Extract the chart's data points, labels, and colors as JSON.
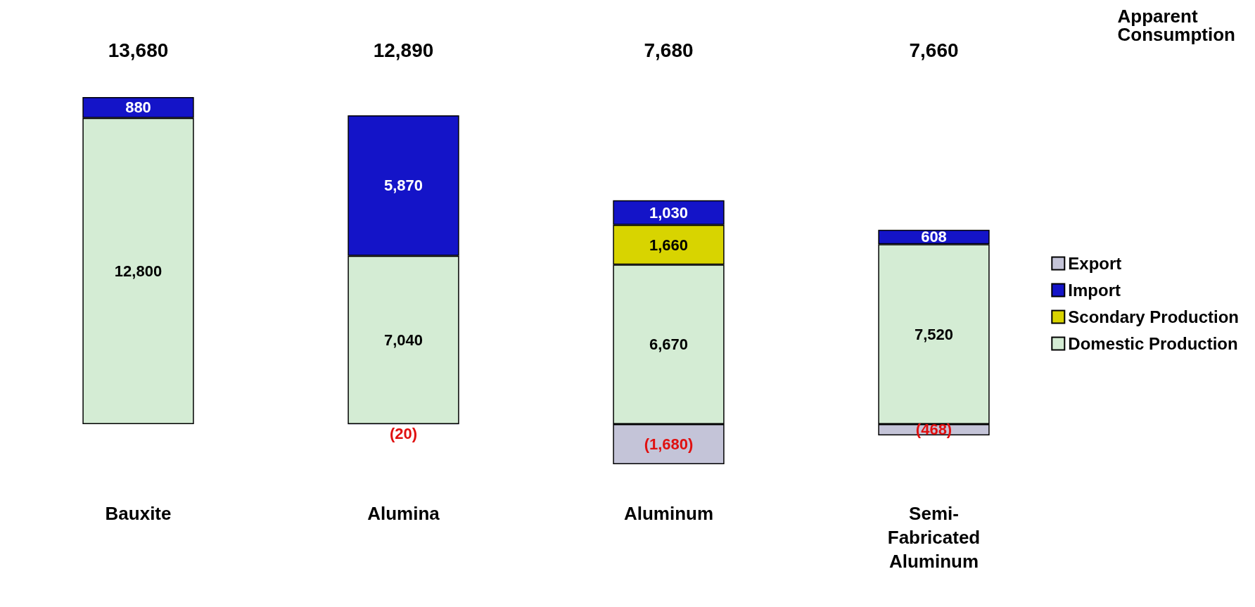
{
  "chart_data": {
    "type": "bar",
    "stacked": true,
    "categories": [
      "Bauxite",
      "Alumina",
      "Aluminum",
      "Semi-Fabricated Aluminum"
    ],
    "series": [
      {
        "name": "Domestic Production",
        "color": "#d4ecd4",
        "values": [
          12800,
          7040,
          6670,
          7520
        ],
        "value_labels": [
          "12,800",
          "7,040",
          "6,670",
          "7,520"
        ]
      },
      {
        "name": "Scondary Production",
        "color": "#d8d400",
        "values": [
          null,
          null,
          1660,
          null
        ],
        "value_labels": [
          null,
          null,
          "1,660",
          null
        ]
      },
      {
        "name": "Import",
        "color": "#1414c8",
        "values": [
          880,
          5870,
          1030,
          608
        ],
        "value_labels": [
          "880",
          "5,870",
          "1,030",
          "608"
        ]
      },
      {
        "name": "Export",
        "color": "#c4c4d8",
        "values": [
          null,
          -20,
          -1680,
          -468
        ],
        "value_labels": [
          null,
          "(20)",
          "(1,680)",
          "(468)"
        ]
      }
    ],
    "annotations": [
      "Apparent Consumption",
      "13,680",
      "12,890",
      "7,680",
      "7,660"
    ],
    "legend": "right"
  }
}
